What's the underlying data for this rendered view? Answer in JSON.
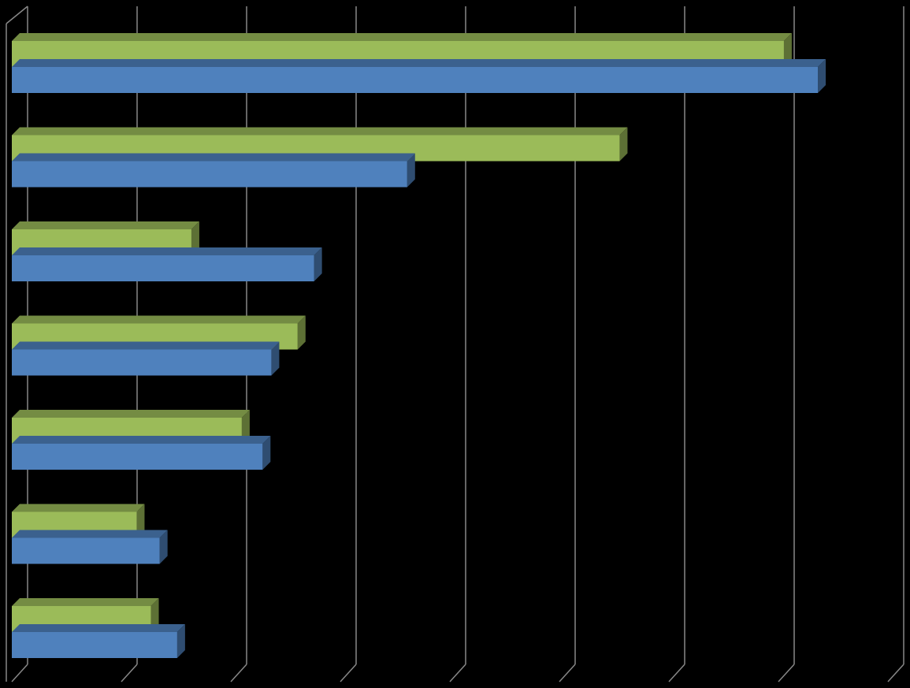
{
  "chart_data": {
    "type": "bar3d-horizontal",
    "categories": [
      null,
      null,
      null,
      null,
      null,
      null,
      null
    ],
    "series": [
      {
        "color": "#9bbb59",
        "values": [
          7.05,
          5.55,
          1.64,
          2.61,
          2.1,
          1.14,
          1.27
        ]
      },
      {
        "color": "#4f81bd",
        "values": [
          7.36,
          3.61,
          2.76,
          2.37,
          2.29,
          1.35,
          1.51
        ]
      }
    ],
    "xlim": [
      0,
      8
    ],
    "xticks": [
      0,
      1,
      2,
      3,
      4,
      5,
      6,
      7,
      8
    ],
    "grid": true
  }
}
